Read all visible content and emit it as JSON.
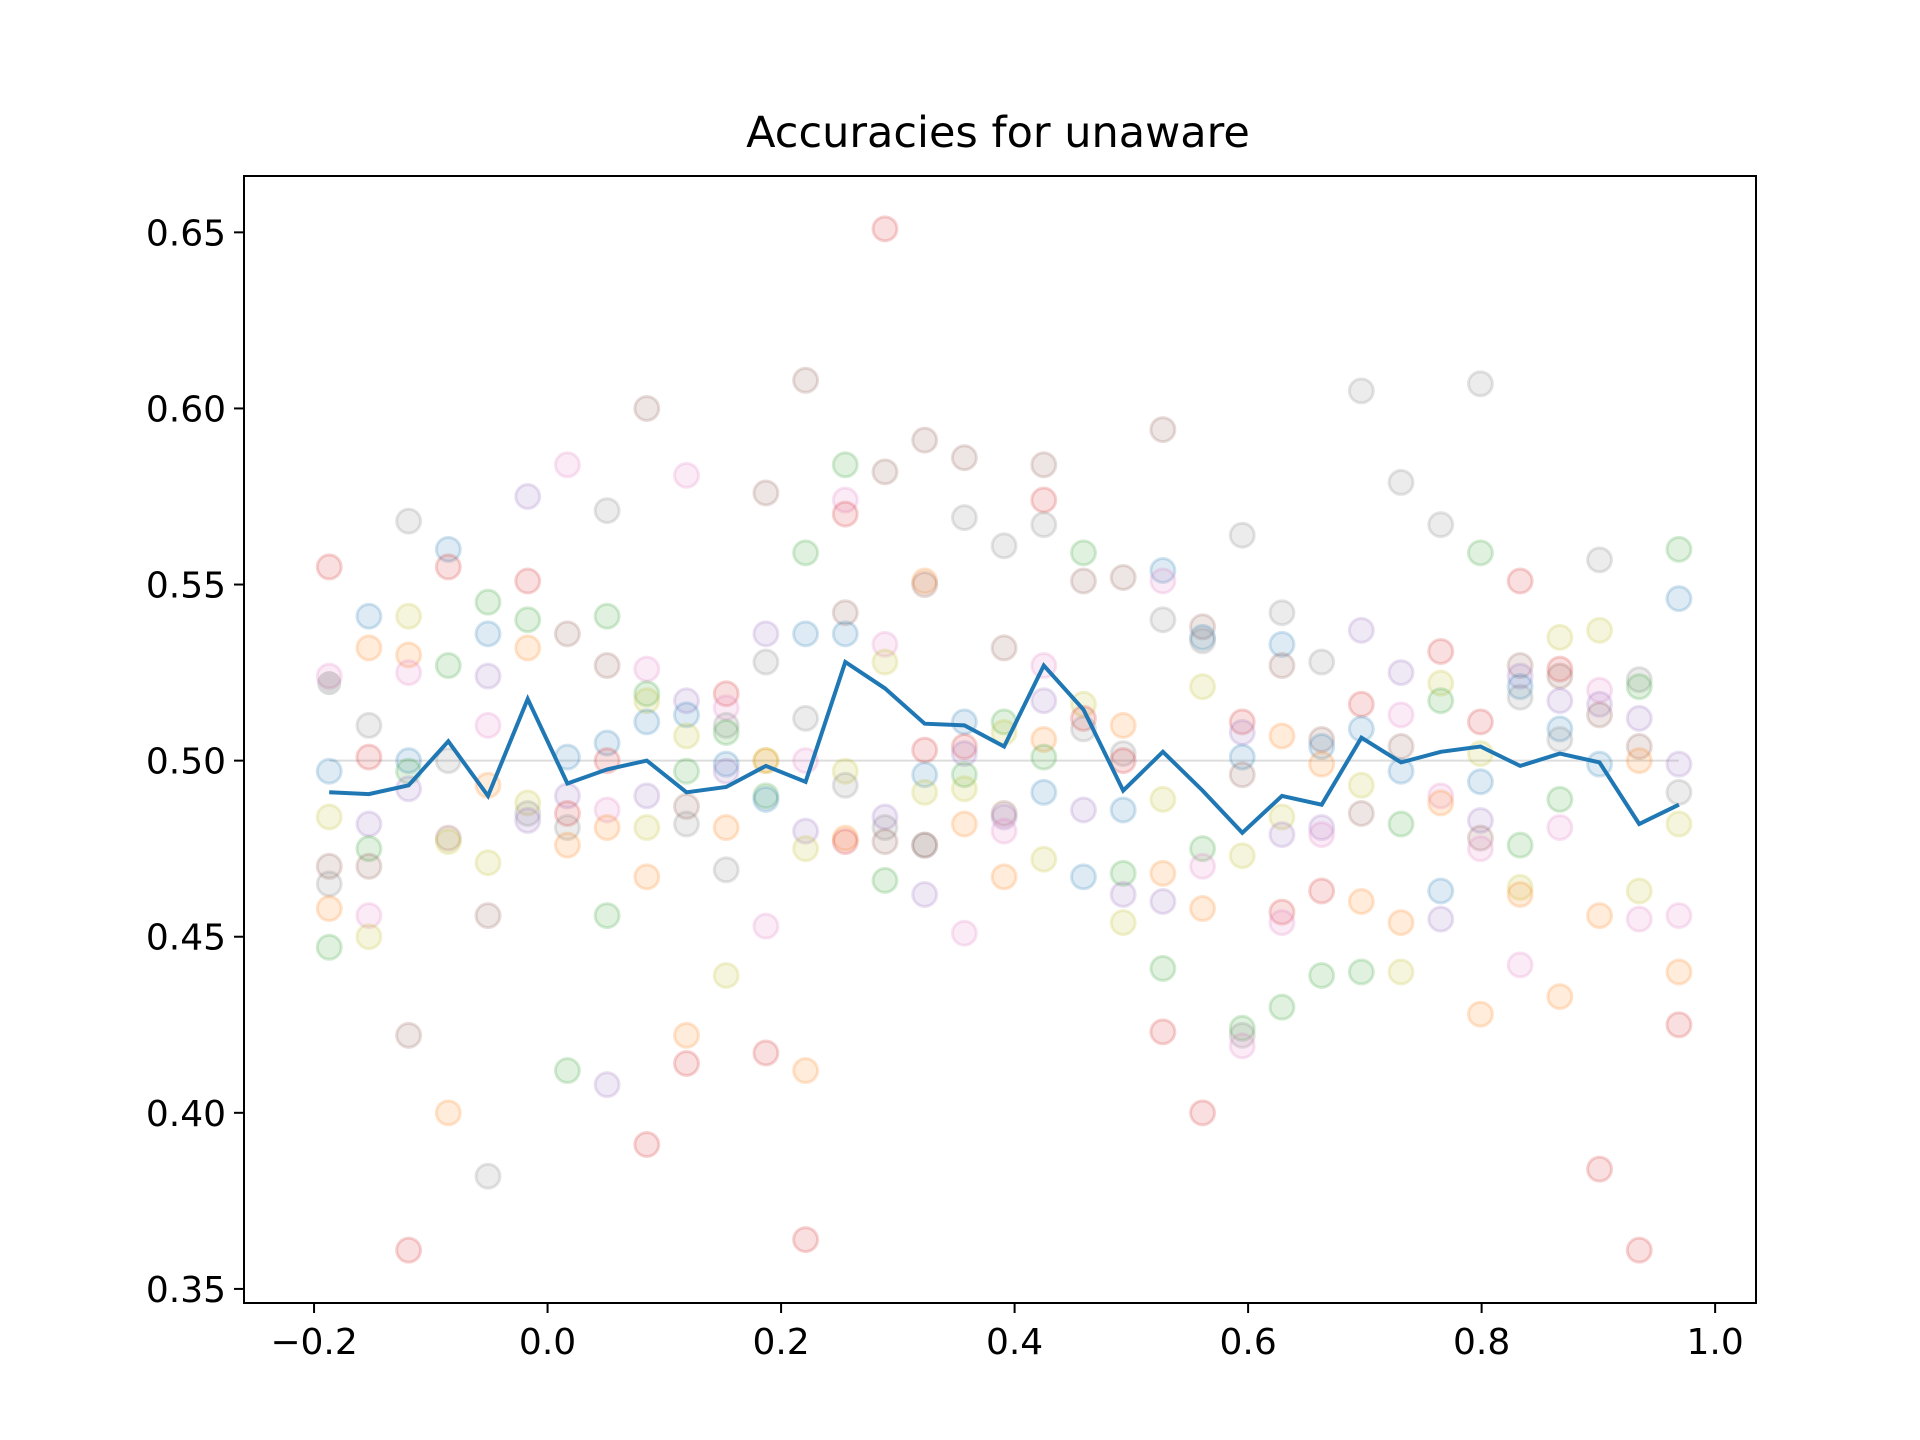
{
  "chart_data": {
    "type": "scatter",
    "title": "Accuracies for unaware",
    "xlabel": "",
    "ylabel": "",
    "xlim": [
      -0.26,
      1.035
    ],
    "ylim": [
      0.346,
      0.666
    ],
    "x_ticks": [
      -0.2,
      0.0,
      0.2,
      0.4,
      0.6,
      0.8,
      1.0
    ],
    "x_tick_labels": [
      "−0.2",
      "0.0",
      "0.2",
      "0.4",
      "0.6",
      "0.8",
      "1.0"
    ],
    "y_ticks": [
      0.35,
      0.4,
      0.45,
      0.5,
      0.55,
      0.6,
      0.65
    ],
    "y_tick_labels": [
      "0.35",
      "0.40",
      "0.45",
      "0.50",
      "0.55",
      "0.60",
      "0.65"
    ],
    "grid": false,
    "legend": "none",
    "reference_line": {
      "y": 0.5,
      "color": "#dddddd"
    },
    "mean_line": {
      "color": "#1f77b4",
      "x": [
        -0.187,
        -0.153,
        -0.119,
        -0.085,
        -0.051,
        -0.017,
        0.017,
        0.051,
        0.085,
        0.119,
        0.153,
        0.187,
        0.221,
        0.255,
        0.289,
        0.323,
        0.357,
        0.391,
        0.425,
        0.459,
        0.493,
        0.527,
        0.561,
        0.595,
        0.629,
        0.663,
        0.697,
        0.731,
        0.765,
        0.799,
        0.833,
        0.867,
        0.901,
        0.935,
        0.969
      ],
      "y": [
        0.491,
        0.4905,
        0.493,
        0.5055,
        0.49,
        0.5175,
        0.4935,
        0.4975,
        0.5,
        0.491,
        0.4925,
        0.4985,
        0.494,
        0.528,
        0.5205,
        0.5105,
        0.51,
        0.504,
        0.527,
        0.5145,
        0.4915,
        0.5025,
        0.4915,
        0.4795,
        0.49,
        0.4875,
        0.5065,
        0.4995,
        0.5025,
        0.504,
        0.4985,
        0.502,
        0.4995,
        0.482,
        0.4875
      ]
    },
    "series_colors": [
      "#1f77b4",
      "#ff7f0e",
      "#2ca02c",
      "#d62728",
      "#9467bd",
      "#8c564b",
      "#e377c2",
      "#7f7f7f",
      "#bcbd22"
    ],
    "point_alpha": 0.15,
    "points": [
      [
        -0.187,
        0.555,
        3
      ],
      [
        -0.187,
        0.524,
        6
      ],
      [
        -0.187,
        0.522,
        9
      ],
      [
        -0.187,
        0.497,
        0
      ],
      [
        -0.187,
        0.484,
        8
      ],
      [
        -0.187,
        0.47,
        5
      ],
      [
        -0.187,
        0.465,
        7
      ],
      [
        -0.187,
        0.458,
        1
      ],
      [
        -0.187,
        0.447,
        2
      ],
      [
        -0.153,
        0.541,
        0
      ],
      [
        -0.153,
        0.532,
        1
      ],
      [
        -0.153,
        0.51,
        7
      ],
      [
        -0.153,
        0.501,
        3
      ],
      [
        -0.153,
        0.482,
        4
      ],
      [
        -0.153,
        0.475,
        2
      ],
      [
        -0.153,
        0.47,
        5
      ],
      [
        -0.153,
        0.456,
        6
      ],
      [
        -0.153,
        0.45,
        8
      ],
      [
        -0.119,
        0.568,
        7
      ],
      [
        -0.119,
        0.541,
        8
      ],
      [
        -0.119,
        0.53,
        1
      ],
      [
        -0.119,
        0.525,
        6
      ],
      [
        -0.119,
        0.5,
        0
      ],
      [
        -0.119,
        0.497,
        2
      ],
      [
        -0.119,
        0.492,
        4
      ],
      [
        -0.119,
        0.422,
        5
      ],
      [
        -0.119,
        0.361,
        3
      ],
      [
        -0.085,
        0.56,
        0
      ],
      [
        -0.085,
        0.555,
        3
      ],
      [
        -0.085,
        0.527,
        2
      ],
      [
        -0.085,
        0.5,
        7
      ],
      [
        -0.085,
        0.478,
        5
      ],
      [
        -0.085,
        0.477,
        8
      ],
      [
        -0.085,
        0.4,
        1
      ],
      [
        -0.051,
        0.545,
        2
      ],
      [
        -0.051,
        0.536,
        0
      ],
      [
        -0.051,
        0.524,
        4
      ],
      [
        -0.051,
        0.51,
        6
      ],
      [
        -0.051,
        0.493,
        1
      ],
      [
        -0.051,
        0.471,
        8
      ],
      [
        -0.051,
        0.456,
        5
      ],
      [
        -0.051,
        0.382,
        7
      ],
      [
        -0.017,
        0.575,
        4
      ],
      [
        -0.017,
        0.551,
        3
      ],
      [
        -0.017,
        0.54,
        2
      ],
      [
        -0.017,
        0.532,
        1
      ],
      [
        -0.017,
        0.488,
        8
      ],
      [
        -0.017,
        0.485,
        7
      ],
      [
        -0.017,
        0.483,
        4
      ],
      [
        0.017,
        0.584,
        6
      ],
      [
        0.017,
        0.536,
        5
      ],
      [
        0.017,
        0.501,
        0
      ],
      [
        0.017,
        0.49,
        4
      ],
      [
        0.017,
        0.485,
        3
      ],
      [
        0.017,
        0.481,
        7
      ],
      [
        0.017,
        0.476,
        1
      ],
      [
        0.017,
        0.412,
        2
      ],
      [
        0.051,
        0.571,
        7
      ],
      [
        0.051,
        0.541,
        2
      ],
      [
        0.051,
        0.527,
        5
      ],
      [
        0.051,
        0.505,
        0
      ],
      [
        0.051,
        0.5,
        3
      ],
      [
        0.051,
        0.486,
        6
      ],
      [
        0.051,
        0.481,
        1
      ],
      [
        0.051,
        0.456,
        2
      ],
      [
        0.051,
        0.408,
        4
      ],
      [
        0.085,
        0.6,
        5
      ],
      [
        0.085,
        0.526,
        6
      ],
      [
        0.085,
        0.519,
        2
      ],
      [
        0.085,
        0.517,
        8
      ],
      [
        0.085,
        0.511,
        0
      ],
      [
        0.085,
        0.49,
        4
      ],
      [
        0.085,
        0.481,
        8
      ],
      [
        0.085,
        0.467,
        1
      ],
      [
        0.085,
        0.391,
        3
      ],
      [
        0.119,
        0.581,
        6
      ],
      [
        0.119,
        0.517,
        4
      ],
      [
        0.119,
        0.513,
        0
      ],
      [
        0.119,
        0.507,
        8
      ],
      [
        0.119,
        0.497,
        2
      ],
      [
        0.119,
        0.487,
        5
      ],
      [
        0.119,
        0.482,
        7
      ],
      [
        0.119,
        0.422,
        1
      ],
      [
        0.119,
        0.414,
        3
      ],
      [
        0.153,
        0.519,
        3
      ],
      [
        0.153,
        0.515,
        6
      ],
      [
        0.153,
        0.51,
        7
      ],
      [
        0.153,
        0.508,
        2
      ],
      [
        0.153,
        0.499,
        0
      ],
      [
        0.153,
        0.497,
        4
      ],
      [
        0.153,
        0.481,
        1
      ],
      [
        0.153,
        0.469,
        7
      ],
      [
        0.153,
        0.439,
        8
      ],
      [
        0.187,
        0.576,
        5
      ],
      [
        0.187,
        0.536,
        4
      ],
      [
        0.187,
        0.528,
        7
      ],
      [
        0.187,
        0.5,
        1
      ],
      [
        0.187,
        0.5,
        8
      ],
      [
        0.187,
        0.49,
        2
      ],
      [
        0.187,
        0.489,
        0
      ],
      [
        0.187,
        0.453,
        6
      ],
      [
        0.187,
        0.417,
        3
      ],
      [
        0.221,
        0.608,
        5
      ],
      [
        0.221,
        0.559,
        2
      ],
      [
        0.221,
        0.536,
        0
      ],
      [
        0.221,
        0.512,
        7
      ],
      [
        0.221,
        0.5,
        6
      ],
      [
        0.221,
        0.48,
        4
      ],
      [
        0.221,
        0.475,
        8
      ],
      [
        0.221,
        0.412,
        1
      ],
      [
        0.221,
        0.364,
        3
      ],
      [
        0.255,
        0.584,
        2
      ],
      [
        0.255,
        0.574,
        6
      ],
      [
        0.255,
        0.57,
        3
      ],
      [
        0.255,
        0.542,
        5
      ],
      [
        0.255,
        0.536,
        0
      ],
      [
        0.255,
        0.497,
        8
      ],
      [
        0.255,
        0.493,
        7
      ],
      [
        0.255,
        0.478,
        1
      ],
      [
        0.255,
        0.477,
        3
      ],
      [
        0.289,
        0.651,
        3
      ],
      [
        0.289,
        0.582,
        5
      ],
      [
        0.289,
        0.533,
        6
      ],
      [
        0.289,
        0.528,
        8
      ],
      [
        0.289,
        0.484,
        4
      ],
      [
        0.289,
        0.481,
        7
      ],
      [
        0.289,
        0.477,
        5
      ],
      [
        0.289,
        0.466,
        2
      ],
      [
        0.323,
        0.591,
        5
      ],
      [
        0.323,
        0.551,
        1
      ],
      [
        0.323,
        0.55,
        5
      ],
      [
        0.323,
        0.503,
        3
      ],
      [
        0.323,
        0.496,
        0
      ],
      [
        0.323,
        0.491,
        8
      ],
      [
        0.323,
        0.476,
        7
      ],
      [
        0.323,
        0.476,
        5
      ],
      [
        0.323,
        0.462,
        4
      ],
      [
        0.357,
        0.586,
        5
      ],
      [
        0.357,
        0.569,
        7
      ],
      [
        0.357,
        0.511,
        0
      ],
      [
        0.357,
        0.504,
        3
      ],
      [
        0.357,
        0.502,
        4
      ],
      [
        0.357,
        0.496,
        2
      ],
      [
        0.357,
        0.492,
        8
      ],
      [
        0.357,
        0.482,
        1
      ],
      [
        0.357,
        0.451,
        6
      ],
      [
        0.391,
        0.561,
        7
      ],
      [
        0.391,
        0.532,
        5
      ],
      [
        0.391,
        0.511,
        2
      ],
      [
        0.391,
        0.508,
        8
      ],
      [
        0.391,
        0.485,
        5
      ],
      [
        0.391,
        0.484,
        4
      ],
      [
        0.391,
        0.48,
        6
      ],
      [
        0.391,
        0.467,
        1
      ],
      [
        0.425,
        0.584,
        5
      ],
      [
        0.425,
        0.574,
        3
      ],
      [
        0.425,
        0.567,
        7
      ],
      [
        0.425,
        0.527,
        6
      ],
      [
        0.425,
        0.517,
        4
      ],
      [
        0.425,
        0.506,
        1
      ],
      [
        0.425,
        0.501,
        2
      ],
      [
        0.425,
        0.491,
        0
      ],
      [
        0.425,
        0.472,
        8
      ],
      [
        0.459,
        0.559,
        2
      ],
      [
        0.459,
        0.551,
        5
      ],
      [
        0.459,
        0.516,
        8
      ],
      [
        0.459,
        0.512,
        3
      ],
      [
        0.459,
        0.509,
        7
      ],
      [
        0.459,
        0.486,
        4
      ],
      [
        0.459,
        0.467,
        0
      ],
      [
        0.493,
        0.552,
        5
      ],
      [
        0.493,
        0.51,
        1
      ],
      [
        0.493,
        0.502,
        7
      ],
      [
        0.493,
        0.5,
        3
      ],
      [
        0.493,
        0.486,
        0
      ],
      [
        0.493,
        0.468,
        2
      ],
      [
        0.493,
        0.462,
        4
      ],
      [
        0.493,
        0.454,
        8
      ],
      [
        0.527,
        0.594,
        5
      ],
      [
        0.527,
        0.554,
        0
      ],
      [
        0.527,
        0.551,
        6
      ],
      [
        0.527,
        0.54,
        7
      ],
      [
        0.527,
        0.489,
        8
      ],
      [
        0.527,
        0.468,
        1
      ],
      [
        0.527,
        0.46,
        4
      ],
      [
        0.527,
        0.441,
        2
      ],
      [
        0.527,
        0.423,
        3
      ],
      [
        0.561,
        0.538,
        5
      ],
      [
        0.561,
        0.535,
        0
      ],
      [
        0.561,
        0.534,
        7
      ],
      [
        0.561,
        0.521,
        8
      ],
      [
        0.561,
        0.475,
        2
      ],
      [
        0.561,
        0.47,
        6
      ],
      [
        0.561,
        0.458,
        1
      ],
      [
        0.561,
        0.4,
        3
      ],
      [
        0.595,
        0.564,
        7
      ],
      [
        0.595,
        0.511,
        3
      ],
      [
        0.595,
        0.508,
        4
      ],
      [
        0.595,
        0.501,
        0
      ],
      [
        0.595,
        0.496,
        5
      ],
      [
        0.595,
        0.473,
        8
      ],
      [
        0.595,
        0.424,
        2
      ],
      [
        0.595,
        0.422,
        7
      ],
      [
        0.595,
        0.419,
        6
      ],
      [
        0.629,
        0.542,
        7
      ],
      [
        0.629,
        0.533,
        0
      ],
      [
        0.629,
        0.527,
        5
      ],
      [
        0.629,
        0.507,
        1
      ],
      [
        0.629,
        0.484,
        8
      ],
      [
        0.629,
        0.479,
        4
      ],
      [
        0.629,
        0.457,
        3
      ],
      [
        0.629,
        0.454,
        6
      ],
      [
        0.629,
        0.43,
        2
      ],
      [
        0.663,
        0.528,
        7
      ],
      [
        0.663,
        0.506,
        5
      ],
      [
        0.663,
        0.504,
        0
      ],
      [
        0.663,
        0.499,
        1
      ],
      [
        0.663,
        0.481,
        4
      ],
      [
        0.663,
        0.479,
        6
      ],
      [
        0.663,
        0.463,
        3
      ],
      [
        0.663,
        0.439,
        2
      ],
      [
        0.697,
        0.605,
        7
      ],
      [
        0.697,
        0.537,
        4
      ],
      [
        0.697,
        0.516,
        3
      ],
      [
        0.697,
        0.509,
        0
      ],
      [
        0.697,
        0.493,
        8
      ],
      [
        0.697,
        0.485,
        5
      ],
      [
        0.697,
        0.46,
        1
      ],
      [
        0.697,
        0.44,
        2
      ],
      [
        0.731,
        0.579,
        7
      ],
      [
        0.731,
        0.525,
        4
      ],
      [
        0.731,
        0.513,
        6
      ],
      [
        0.731,
        0.504,
        5
      ],
      [
        0.731,
        0.497,
        0
      ],
      [
        0.731,
        0.482,
        2
      ],
      [
        0.731,
        0.454,
        1
      ],
      [
        0.731,
        0.44,
        8
      ],
      [
        0.765,
        0.567,
        7
      ],
      [
        0.765,
        0.531,
        3
      ],
      [
        0.765,
        0.522,
        8
      ],
      [
        0.765,
        0.517,
        2
      ],
      [
        0.765,
        0.49,
        6
      ],
      [
        0.765,
        0.488,
        1
      ],
      [
        0.765,
        0.463,
        0
      ],
      [
        0.765,
        0.455,
        4
      ],
      [
        0.799,
        0.607,
        7
      ],
      [
        0.799,
        0.559,
        2
      ],
      [
        0.799,
        0.511,
        3
      ],
      [
        0.799,
        0.502,
        8
      ],
      [
        0.799,
        0.494,
        0
      ],
      [
        0.799,
        0.483,
        4
      ],
      [
        0.799,
        0.478,
        5
      ],
      [
        0.799,
        0.475,
        6
      ],
      [
        0.799,
        0.428,
        1
      ],
      [
        0.833,
        0.551,
        3
      ],
      [
        0.833,
        0.527,
        5
      ],
      [
        0.833,
        0.524,
        4
      ],
      [
        0.833,
        0.521,
        0
      ],
      [
        0.833,
        0.518,
        7
      ],
      [
        0.833,
        0.476,
        2
      ],
      [
        0.833,
        0.464,
        8
      ],
      [
        0.833,
        0.462,
        1
      ],
      [
        0.833,
        0.442,
        6
      ],
      [
        0.867,
        0.535,
        8
      ],
      [
        0.867,
        0.526,
        3
      ],
      [
        0.867,
        0.524,
        5
      ],
      [
        0.867,
        0.517,
        4
      ],
      [
        0.867,
        0.509,
        0
      ],
      [
        0.867,
        0.506,
        7
      ],
      [
        0.867,
        0.489,
        2
      ],
      [
        0.867,
        0.481,
        6
      ],
      [
        0.867,
        0.433,
        1
      ],
      [
        0.901,
        0.557,
        7
      ],
      [
        0.901,
        0.537,
        8
      ],
      [
        0.901,
        0.52,
        6
      ],
      [
        0.901,
        0.516,
        4
      ],
      [
        0.901,
        0.513,
        5
      ],
      [
        0.901,
        0.499,
        0
      ],
      [
        0.901,
        0.456,
        1
      ],
      [
        0.901,
        0.384,
        3
      ],
      [
        0.935,
        0.523,
        7
      ],
      [
        0.935,
        0.521,
        2
      ],
      [
        0.935,
        0.512,
        4
      ],
      [
        0.935,
        0.504,
        5
      ],
      [
        0.935,
        0.5,
        1
      ],
      [
        0.935,
        0.463,
        8
      ],
      [
        0.935,
        0.455,
        6
      ],
      [
        0.935,
        0.361,
        3
      ],
      [
        0.969,
        0.56,
        2
      ],
      [
        0.969,
        0.546,
        0
      ],
      [
        0.969,
        0.499,
        4
      ],
      [
        0.969,
        0.491,
        7
      ],
      [
        0.969,
        0.482,
        8
      ],
      [
        0.969,
        0.456,
        6
      ],
      [
        0.969,
        0.44,
        1
      ],
      [
        0.969,
        0.425,
        3
      ]
    ]
  }
}
